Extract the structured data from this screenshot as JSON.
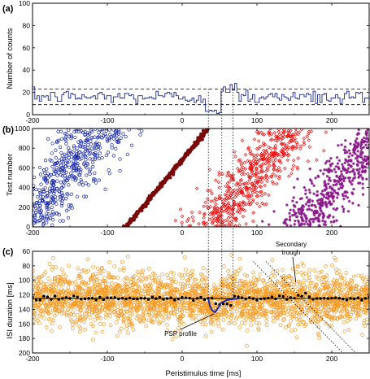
{
  "chart_data": [
    {
      "panel": "(a)",
      "type": "line",
      "step": true,
      "ylabel": "Number of counts",
      "xlim": [
        -200,
        250
      ],
      "ylim": [
        0,
        100
      ],
      "xticks": [
        "-200",
        "-100",
        "0",
        "100",
        "200"
      ],
      "yticks": [
        "0",
        "20",
        "40",
        "60",
        "80",
        "100"
      ],
      "grid": false,
      "colors": {
        "histogram": "#1f2a8a",
        "threshold": "#000000"
      },
      "reference_lines": {
        "mean": 16,
        "upper": 23,
        "lower": 9
      },
      "series": [
        {
          "x_start": -200,
          "x_end": 250,
          "bin_ms": 3,
          "description_values": {
            "baseline": 16,
            "dip_start": 30,
            "dip_end": 50,
            "dip_min": 1,
            "peak_start": 50,
            "peak_end": 75,
            "peak_max": 29
          }
        }
      ]
    },
    {
      "panel": "(b)",
      "type": "scatter",
      "ylabel": "Test number",
      "xlim": [
        -200,
        250
      ],
      "ylim": [
        0,
        1000
      ],
      "xticks": [
        "-200",
        "-100",
        "0",
        "100",
        "200"
      ],
      "yticks": [
        "0",
        "200",
        "400",
        "600",
        "800",
        "1000"
      ],
      "grid": false,
      "series": [
        {
          "color": "#1a2aa8",
          "marker": "circle",
          "x_at_y0": -210,
          "x_at_y1000": -110,
          "jitter_ms": 25
        },
        {
          "color": "#7a0a0a",
          "marker": "circle",
          "x_at_y0": -75,
          "x_at_y1000": 35,
          "jitter_ms": 1.5
        },
        {
          "color": "#ee1111",
          "marker": "diamond",
          "x_at_y0": 40,
          "x_at_y1000": 145,
          "jitter_ms": 22
        },
        {
          "color": "#8a1a8a",
          "marker": "star",
          "x_at_y0": 160,
          "x_at_y1000": 265,
          "jitter_ms": 22
        }
      ],
      "vertical_markers_ms": [
        35,
        53,
        68
      ]
    },
    {
      "panel": "(c)",
      "type": "scatter",
      "xlabel": "Peristimulus time [ms]",
      "ylabel": "ISI duration [ms]",
      "xlim": [
        -200,
        250
      ],
      "ylim": [
        200,
        60
      ],
      "y_inverted": true,
      "xticks": [
        "-200",
        "-100",
        "0",
        "100",
        "200"
      ],
      "yticks": [
        "60",
        "80",
        "100",
        "120",
        "140",
        "160",
        "180",
        "200"
      ],
      "grid": false,
      "colors": {
        "points": "#f59a22",
        "mean_markers": "#000000",
        "psp_profile": "#1a2aa8",
        "baseline": "#000000"
      },
      "mean_isi_ms": 125,
      "psp_profile": [
        {
          "x": 35,
          "y": 125
        },
        {
          "x": 37,
          "y": 135
        },
        {
          "x": 40,
          "y": 141
        },
        {
          "x": 44,
          "y": 144
        },
        {
          "x": 48,
          "y": 138
        },
        {
          "x": 52,
          "y": 131
        },
        {
          "x": 60,
          "y": 127
        },
        {
          "x": 75,
          "y": 125
        }
      ],
      "annotations": [
        {
          "text": "PSP profile",
          "x": 20,
          "y": 176
        },
        {
          "line1": "Secondary",
          "line2": "trough",
          "x": 140,
          "y": 76
        }
      ]
    }
  ],
  "labels": {
    "panel_a": "(a)",
    "panel_b": "(b)",
    "panel_c": "(c)",
    "ylabel_a": "Number of counts",
    "ylabel_b": "Test number",
    "ylabel_c": "ISI duration [ms]",
    "xlabel": "Peristimulus time [ms]",
    "psp_label": "PSP profile",
    "secondary_line1": "Secondary",
    "secondary_line2": "trough"
  }
}
